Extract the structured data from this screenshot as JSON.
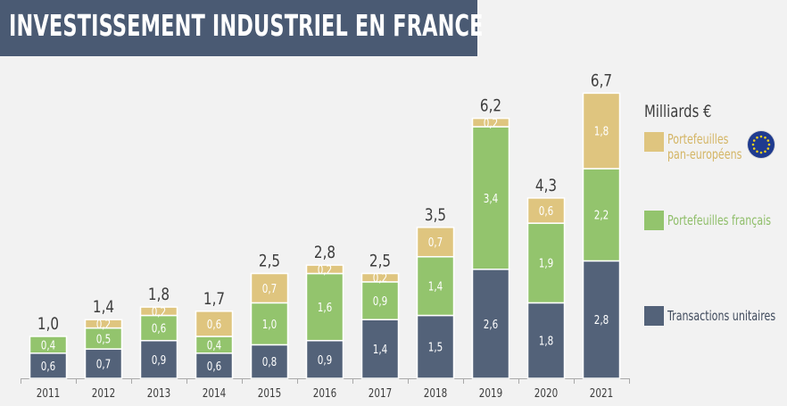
{
  "header": {
    "title": "INVESTISSEMENT INDUSTRIEL EN FRANCE"
  },
  "colors": {
    "banner": "#4a5a73",
    "transactions_unitaires": "#536279",
    "portefeuilles_francais": "#93c46d",
    "portefeuilles_pan_europeens": "#dfc57f"
  },
  "legend": {
    "unit": "Milliards €",
    "items": [
      {
        "label": "Portefeuilles\npan-européens",
        "color": "#dfc57f",
        "icon": "eu-flag-icon"
      },
      {
        "label": "Portefeuilles français",
        "color": "#93c46d"
      },
      {
        "label": "Transactions unitaires",
        "color": "#536279"
      }
    ]
  },
  "chart_data": {
    "type": "bar",
    "stacked": true,
    "categories": [
      "2011",
      "2012",
      "2013",
      "2014",
      "2015",
      "2016",
      "2017",
      "2018",
      "2019",
      "2020",
      "2021"
    ],
    "series": [
      {
        "name": "Transactions unitaires",
        "values": [
          0.6,
          0.7,
          0.9,
          0.6,
          0.8,
          0.9,
          1.4,
          1.5,
          2.6,
          1.8,
          2.8
        ],
        "labels": [
          "0,6",
          "0,7",
          "0,9",
          "0,6",
          "0,8",
          "0,9",
          "1,4",
          "1,5",
          "2,6",
          "1,8",
          "2,8"
        ],
        "color": "#536279"
      },
      {
        "name": "Portefeuilles français",
        "values": [
          0.4,
          0.5,
          0.6,
          0.4,
          1.0,
          1.6,
          0.9,
          1.4,
          3.4,
          1.9,
          2.2
        ],
        "labels": [
          "0,4",
          "0,5",
          "0,6",
          "0,4",
          "1,0",
          "1,6",
          "0,9",
          "1,4",
          "3,4",
          "1,9",
          "2,2"
        ],
        "color": "#93c46d"
      },
      {
        "name": "Portefeuilles pan-européens",
        "values": [
          0,
          0.2,
          0.2,
          0.6,
          0.7,
          0.2,
          0.2,
          0.7,
          0.2,
          0.6,
          1.8
        ],
        "labels": [
          "",
          "0,2",
          "0,2",
          "0,6",
          "0,7",
          "0,2",
          "0,2",
          "0,7",
          "0,2",
          "0,6",
          "1,8"
        ],
        "color": "#dfc57f"
      }
    ],
    "totals": [
      "1,0",
      "1,4",
      "1,8",
      "1,7",
      "2,5",
      "2,8",
      "2,5",
      "3,5",
      "6,2",
      "4,3",
      "6,7"
    ],
    "legend_position": "right",
    "grid": false
  }
}
